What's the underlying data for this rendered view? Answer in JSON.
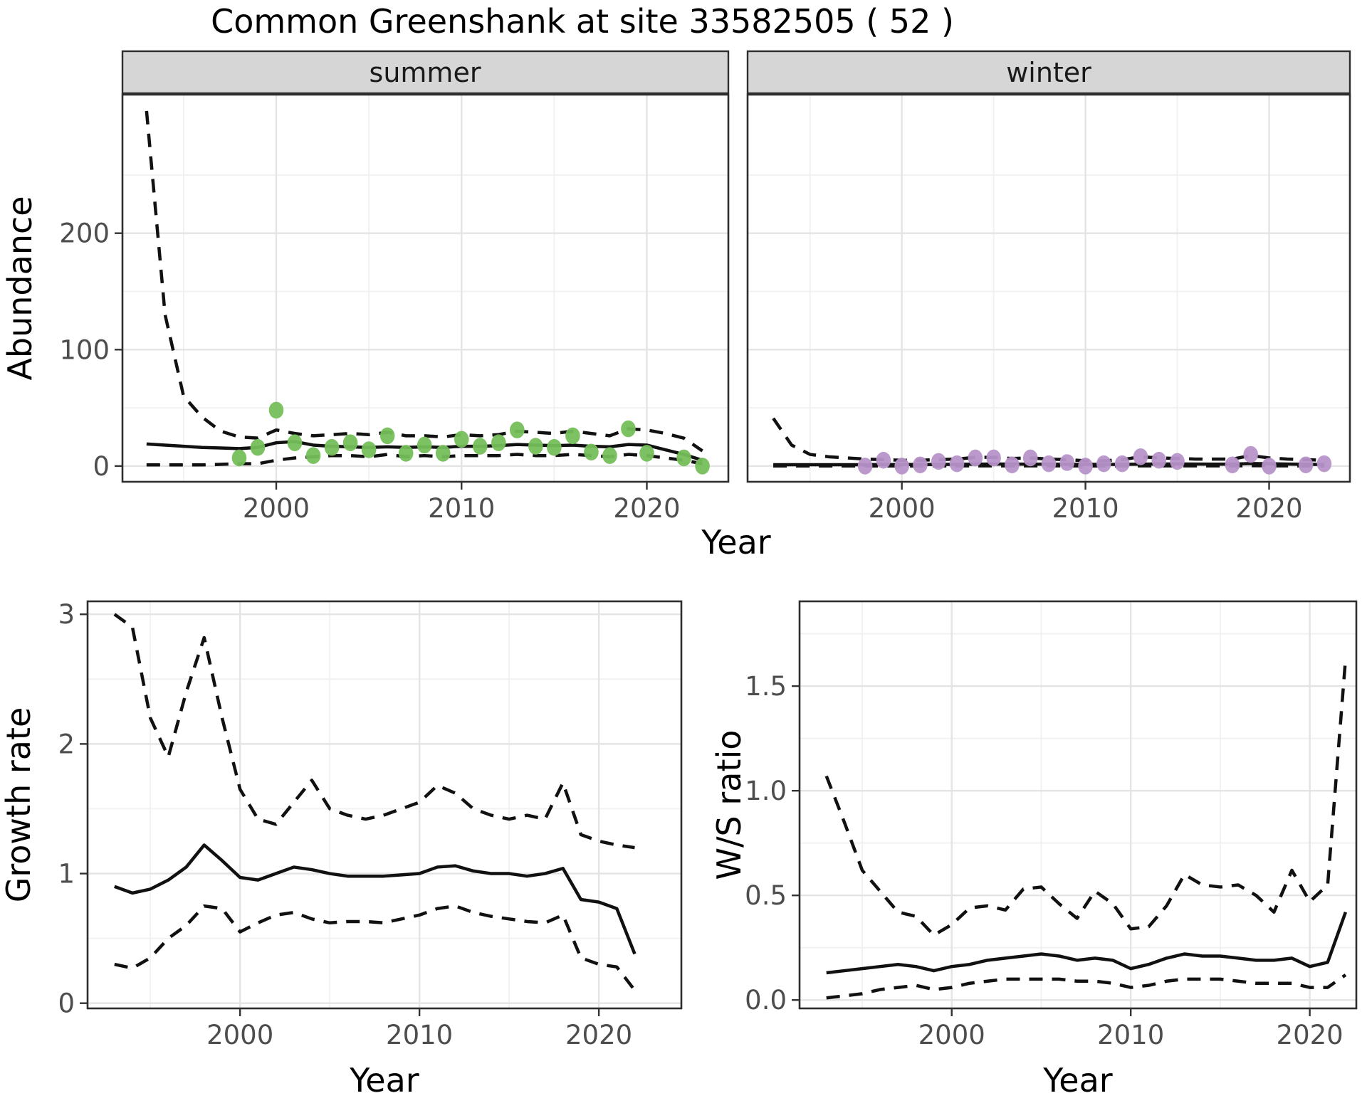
{
  "title": "Common Greenshank at site 33582505 ( 52 )",
  "axes": {
    "x_label": "Year",
    "abundance_label": "Abundance",
    "growth_label": "Growth rate",
    "ws_label": "W/S ratio"
  },
  "facets": {
    "summer": "summer",
    "winter": "winter"
  },
  "colors": {
    "summer_point": "#75bf5a",
    "winter_point": "#b794c9",
    "line": "#111111",
    "strip_fill": "#d6d6d6",
    "panel_border": "#2e2e2e",
    "grid_major": "#e4e4e4",
    "grid_minor": "#f0f0f0",
    "tick_text": "#4d4d4d",
    "tick_mark": "#333333"
  },
  "chart_data": [
    {
      "id": "abundance_summer",
      "type": "line",
      "facet_label": "summer",
      "x": {
        "domain": [
          1991.7,
          2024.4
        ],
        "major_ticks": [
          2000,
          2010,
          2020
        ],
        "minor_ticks": [
          1995,
          2005,
          2015
        ],
        "tick_labels": [
          "2000",
          "2010",
          "2020"
        ]
      },
      "y": {
        "domain": [
          -13.5,
          319
        ],
        "major_ticks": [
          0,
          100,
          200
        ],
        "minor_ticks": [
          50,
          150,
          250
        ],
        "tick_labels": [
          "0",
          "100",
          "200"
        ]
      },
      "lines": {
        "start_year": 1993,
        "median": [
          19,
          18,
          17,
          16,
          15.5,
          15,
          16,
          20,
          21,
          18,
          17,
          16.5,
          16,
          16.5,
          16,
          16.5,
          16,
          17,
          17,
          17.5,
          18.5,
          18,
          17.5,
          18,
          17,
          16.5,
          18.5,
          18,
          14,
          10,
          5
        ],
        "upper": [
          305,
          130,
          60,
          42,
          30,
          25,
          24,
          31,
          28,
          26,
          27,
          28,
          27,
          29,
          26,
          26,
          25,
          27,
          26,
          27,
          30,
          29,
          28,
          30,
          28,
          26,
          32,
          31,
          28,
          24,
          13
        ],
        "lower": [
          1,
          1,
          1,
          1,
          1.5,
          2,
          2,
          5,
          7,
          8,
          9,
          9,
          8,
          10,
          8,
          9,
          8,
          9,
          9,
          9,
          10,
          9,
          9,
          10,
          9,
          8,
          10,
          9,
          7,
          5,
          2
        ]
      },
      "points": {
        "color": "#75bf5a",
        "data": [
          [
            1998,
            7
          ],
          [
            1999,
            16
          ],
          [
            2000,
            48
          ],
          [
            2001,
            20
          ],
          [
            2002,
            9
          ],
          [
            2003,
            16
          ],
          [
            2004,
            20
          ],
          [
            2005,
            14
          ],
          [
            2006,
            26
          ],
          [
            2007,
            11
          ],
          [
            2008,
            18
          ],
          [
            2009,
            11
          ],
          [
            2010,
            23
          ],
          [
            2011,
            17
          ],
          [
            2012,
            20
          ],
          [
            2013,
            31
          ],
          [
            2014,
            17
          ],
          [
            2015,
            16
          ],
          [
            2016,
            26
          ],
          [
            2017,
            12
          ],
          [
            2018,
            9
          ],
          [
            2019,
            32
          ],
          [
            2020,
            11
          ],
          [
            2022,
            7
          ],
          [
            2023,
            0
          ]
        ]
      }
    },
    {
      "id": "abundance_winter",
      "type": "line",
      "facet_label": "winter",
      "x": {
        "domain": [
          1991.6,
          2024.4
        ],
        "major_ticks": [
          2000,
          2010,
          2020
        ],
        "minor_ticks": [
          1995,
          2005,
          2015
        ],
        "tick_labels": [
          "2000",
          "2010",
          "2020"
        ]
      },
      "y": {
        "domain": [
          -13.5,
          319
        ],
        "major_ticks": [
          0,
          100,
          200
        ],
        "minor_ticks": [
          50,
          150,
          250
        ],
        "tick_labels": [
          "0",
          "100",
          "200"
        ]
      },
      "lines": {
        "start_year": 1993,
        "median": [
          1.2,
          1.2,
          1.2,
          1.2,
          1.2,
          1.2,
          1.3,
          1.3,
          1.3,
          1.4,
          1.5,
          1.6,
          1.7,
          1.7,
          1.6,
          1.6,
          1.5,
          1.5,
          1.4,
          1.5,
          1.6,
          1.8,
          1.8,
          1.7,
          1.6,
          1.6,
          2.2,
          2.0,
          1.7,
          1.5,
          1.4
        ],
        "upper": [
          41,
          18,
          10,
          8,
          7,
          6,
          5.5,
          5,
          5,
          5.5,
          6,
          7.5,
          7.5,
          6.5,
          7,
          6,
          5.5,
          4.5,
          4.5,
          5.5,
          8,
          7,
          6.5,
          6,
          6,
          6,
          9,
          7,
          6,
          5.5,
          5
        ],
        "lower": [
          0.1,
          0.1,
          0.1,
          0.1,
          0.1,
          0.1,
          0.1,
          0.1,
          0.1,
          0.1,
          0.2,
          0.2,
          0.2,
          0.2,
          0.2,
          0.2,
          0.2,
          0.1,
          0.1,
          0.2,
          0.2,
          0.2,
          0.2,
          0.2,
          0.2,
          0.2,
          0.3,
          0.2,
          0.2,
          0.1,
          0.1
        ]
      },
      "points": {
        "color": "#b794c9",
        "data": [
          [
            1998,
            0
          ],
          [
            1999,
            5
          ],
          [
            2000,
            0
          ],
          [
            2001,
            1
          ],
          [
            2002,
            4
          ],
          [
            2003,
            2
          ],
          [
            2004,
            7
          ],
          [
            2005,
            7
          ],
          [
            2006,
            1
          ],
          [
            2007,
            7
          ],
          [
            2008,
            2
          ],
          [
            2009,
            3
          ],
          [
            2010,
            0
          ],
          [
            2011,
            2
          ],
          [
            2012,
            2
          ],
          [
            2013,
            8
          ],
          [
            2014,
            5
          ],
          [
            2015,
            4
          ],
          [
            2018,
            1
          ],
          [
            2019,
            10
          ],
          [
            2020,
            0
          ],
          [
            2022,
            1
          ],
          [
            2023,
            2
          ]
        ]
      }
    },
    {
      "id": "growth",
      "type": "line",
      "facet_label": null,
      "x": {
        "domain": [
          1991.5,
          2024.6
        ],
        "major_ticks": [
          2000,
          2010,
          2020
        ],
        "minor_ticks": [
          1995,
          2005,
          2015
        ],
        "tick_labels": [
          "2000",
          "2010",
          "2020"
        ]
      },
      "y": {
        "domain": [
          -0.04,
          3.1
        ],
        "major_ticks": [
          0,
          1,
          2,
          3
        ],
        "minor_ticks": [
          0.5,
          1.5,
          2.5
        ],
        "tick_labels": [
          "0",
          "1",
          "2",
          "3"
        ]
      },
      "lines": {
        "start_year": 1993,
        "median": [
          0.9,
          0.85,
          0.88,
          0.95,
          1.05,
          1.22,
          1.1,
          0.97,
          0.95,
          1.0,
          1.05,
          1.03,
          1.0,
          0.98,
          0.98,
          0.98,
          0.99,
          1.0,
          1.05,
          1.06,
          1.02,
          1.0,
          1.0,
          0.98,
          1.0,
          1.04,
          0.8,
          0.78,
          0.73,
          0.38
        ],
        "upper": [
          3.0,
          2.9,
          2.2,
          1.9,
          2.4,
          2.82,
          2.2,
          1.65,
          1.42,
          1.38,
          1.55,
          1.72,
          1.5,
          1.45,
          1.42,
          1.45,
          1.5,
          1.55,
          1.68,
          1.62,
          1.5,
          1.45,
          1.42,
          1.45,
          1.42,
          1.7,
          1.3,
          1.25,
          1.22,
          1.2
        ],
        "lower": [
          0.3,
          0.27,
          0.35,
          0.5,
          0.6,
          0.75,
          0.73,
          0.55,
          0.62,
          0.68,
          0.7,
          0.65,
          0.62,
          0.63,
          0.63,
          0.62,
          0.65,
          0.68,
          0.73,
          0.75,
          0.7,
          0.67,
          0.65,
          0.63,
          0.62,
          0.68,
          0.35,
          0.3,
          0.28,
          0.1
        ]
      },
      "points": {
        "color": null,
        "data": []
      }
    },
    {
      "id": "ws",
      "type": "line",
      "facet_label": null,
      "x": {
        "domain": [
          1991.5,
          2022.6
        ],
        "major_ticks": [
          2000,
          2010,
          2020
        ],
        "minor_ticks": [
          1995,
          2005,
          2015
        ],
        "tick_labels": [
          "2000",
          "2010",
          "2020"
        ]
      },
      "y": {
        "domain": [
          -0.04,
          1.905
        ],
        "major_ticks": [
          0,
          0.5,
          1,
          1.5
        ],
        "minor_ticks": [
          0.25,
          0.75,
          1.25,
          1.75
        ],
        "tick_labels": [
          "0.0",
          "0.5",
          "1.0",
          "1.5"
        ]
      },
      "lines": {
        "start_year": 1993,
        "median": [
          0.13,
          0.14,
          0.15,
          0.16,
          0.17,
          0.16,
          0.14,
          0.16,
          0.17,
          0.19,
          0.2,
          0.21,
          0.22,
          0.21,
          0.19,
          0.2,
          0.19,
          0.15,
          0.17,
          0.2,
          0.22,
          0.21,
          0.21,
          0.2,
          0.19,
          0.19,
          0.2,
          0.16,
          0.18,
          0.42
        ],
        "upper": [
          1.07,
          0.85,
          0.62,
          0.52,
          0.42,
          0.4,
          0.31,
          0.36,
          0.44,
          0.45,
          0.43,
          0.53,
          0.54,
          0.46,
          0.39,
          0.52,
          0.46,
          0.34,
          0.35,
          0.45,
          0.6,
          0.55,
          0.54,
          0.55,
          0.5,
          0.42,
          0.62,
          0.47,
          0.55,
          1.63
        ],
        "lower": [
          0.01,
          0.02,
          0.03,
          0.05,
          0.06,
          0.07,
          0.05,
          0.06,
          0.08,
          0.09,
          0.1,
          0.1,
          0.1,
          0.1,
          0.09,
          0.09,
          0.08,
          0.06,
          0.07,
          0.09,
          0.1,
          0.1,
          0.1,
          0.09,
          0.08,
          0.08,
          0.08,
          0.06,
          0.06,
          0.12
        ]
      },
      "points": {
        "color": null,
        "data": []
      }
    }
  ]
}
